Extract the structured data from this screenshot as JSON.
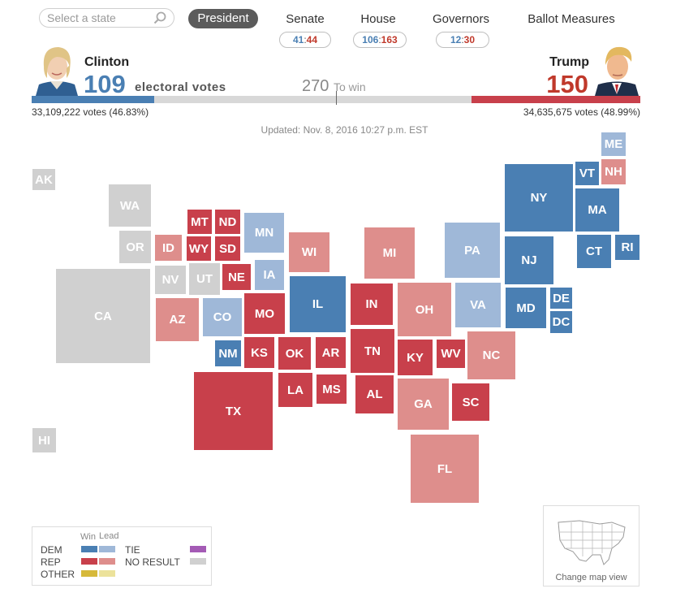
{
  "search": {
    "placeholder": "Select a state"
  },
  "tabs": {
    "president": "President",
    "senate": "Senate",
    "house": "House",
    "governors": "Governors",
    "ballot": "Ballot Measures"
  },
  "scores": {
    "senate": {
      "dem": "41",
      "rep": "44"
    },
    "house": {
      "dem": "106",
      "rep": "163"
    },
    "governors": {
      "dem": "12",
      "rep": "30"
    },
    "separator": ":"
  },
  "candidates": {
    "dem": {
      "name": "Clinton",
      "electoral": "109",
      "votes": "33,109,222 votes (46.83%)",
      "vote_share": 46.83
    },
    "rep": {
      "name": "Trump",
      "electoral": "150",
      "votes": "34,635,675 votes (48.99%)",
      "vote_share": 48.99
    },
    "electoral_label": "electoral votes",
    "to_win_number": "270",
    "to_win_label": "To win"
  },
  "updated": "Updated: Nov. 8, 2016 10:27 p.m. EST",
  "status_legend": {
    "DW": "DEM win",
    "DL": "DEM lead",
    "RW": "REP win",
    "RL": "REP lead",
    "NR": "No result"
  },
  "states": [
    {
      "abbr": "ME",
      "status": "DL"
    },
    {
      "abbr": "VT",
      "status": "DW"
    },
    {
      "abbr": "NH",
      "status": "RL"
    },
    {
      "abbr": "NY",
      "status": "DW"
    },
    {
      "abbr": "MA",
      "status": "DW"
    },
    {
      "abbr": "CT",
      "status": "DW"
    },
    {
      "abbr": "RI",
      "status": "DW"
    },
    {
      "abbr": "AK",
      "status": "NR"
    },
    {
      "abbr": "WA",
      "status": "NR"
    },
    {
      "abbr": "OR",
      "status": "NR"
    },
    {
      "abbr": "MT",
      "status": "RW"
    },
    {
      "abbr": "ND",
      "status": "RW"
    },
    {
      "abbr": "ID",
      "status": "RL"
    },
    {
      "abbr": "WY",
      "status": "RW"
    },
    {
      "abbr": "SD",
      "status": "RW"
    },
    {
      "abbr": "MN",
      "status": "DL"
    },
    {
      "abbr": "WI",
      "status": "RL"
    },
    {
      "abbr": "MI",
      "status": "RL"
    },
    {
      "abbr": "PA",
      "status": "DL"
    },
    {
      "abbr": "NJ",
      "status": "DW"
    },
    {
      "abbr": "NV",
      "status": "NR"
    },
    {
      "abbr": "UT",
      "status": "NR"
    },
    {
      "abbr": "NE",
      "status": "RW"
    },
    {
      "abbr": "IA",
      "status": "DL"
    },
    {
      "abbr": "CA",
      "status": "NR"
    },
    {
      "abbr": "IL",
      "status": "DW"
    },
    {
      "abbr": "IN",
      "status": "RW"
    },
    {
      "abbr": "OH",
      "status": "RL"
    },
    {
      "abbr": "VA",
      "status": "DL"
    },
    {
      "abbr": "MD",
      "status": "DW"
    },
    {
      "abbr": "DE",
      "status": "DW"
    },
    {
      "abbr": "DC",
      "status": "DW"
    },
    {
      "abbr": "AZ",
      "status": "RL"
    },
    {
      "abbr": "CO",
      "status": "DL"
    },
    {
      "abbr": "MO",
      "status": "RW"
    },
    {
      "abbr": "NM",
      "status": "DW"
    },
    {
      "abbr": "KS",
      "status": "RW"
    },
    {
      "abbr": "OK",
      "status": "RW"
    },
    {
      "abbr": "AR",
      "status": "RW"
    },
    {
      "abbr": "TN",
      "status": "RW"
    },
    {
      "abbr": "KY",
      "status": "RW"
    },
    {
      "abbr": "WV",
      "status": "RW"
    },
    {
      "abbr": "NC",
      "status": "RL"
    },
    {
      "abbr": "TX",
      "status": "RW"
    },
    {
      "abbr": "LA",
      "status": "RW"
    },
    {
      "abbr": "MS",
      "status": "RW"
    },
    {
      "abbr": "AL",
      "status": "RW"
    },
    {
      "abbr": "GA",
      "status": "RL"
    },
    {
      "abbr": "SC",
      "status": "RW"
    },
    {
      "abbr": "FL",
      "status": "RL"
    },
    {
      "abbr": "HI",
      "status": "NR"
    }
  ],
  "legend": {
    "win": "Win",
    "lead": "Lead",
    "dem": "DEM",
    "rep": "REP",
    "other": "OTHER",
    "tie": "TIE",
    "no_result": "NO RESULT"
  },
  "minimap": {
    "label": "Change map view"
  },
  "colors": {
    "dem_win": "#4a7fb3",
    "dem_lead": "#9fb8d8",
    "rep_win": "#c8404b",
    "rep_lead": "#de8e8c",
    "no_result": "#d0d0d0",
    "tie": "#a45bb5",
    "other_win": "#d6b93a",
    "other_lead": "#ece29b"
  }
}
